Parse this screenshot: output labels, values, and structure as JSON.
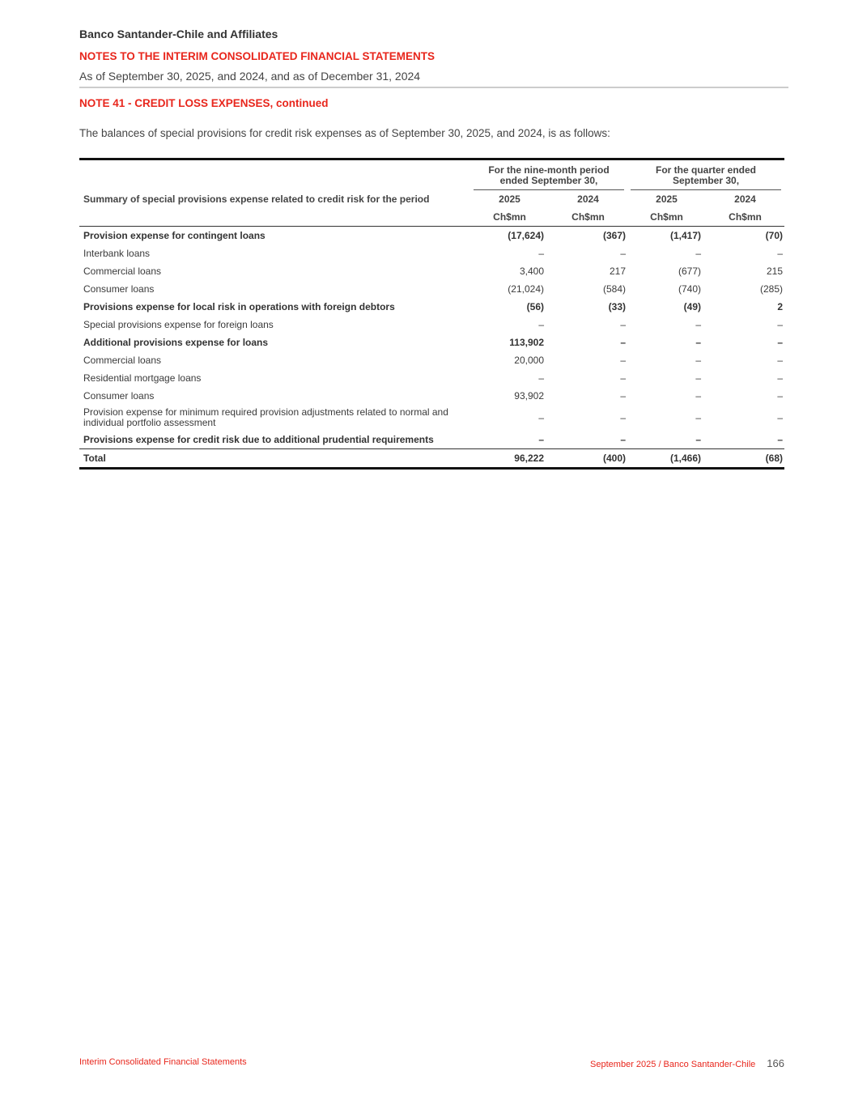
{
  "header": {
    "company": "Banco Santander-Chile and Affiliates",
    "section": "NOTES TO THE INTERIM CONSOLIDATED FINANCIAL STATEMENTS",
    "date": "As of September 30, 2025, and 2024, and as of December 31, 2024"
  },
  "note_title": "NOTE 41 - CREDIT LOSS EXPENSES, continued",
  "intro": "The balances of special provisions for credit risk expenses as of September 30, 2025, and 2024, is as follows:",
  "table": {
    "group1": "For the nine-month period ended September 30,",
    "group2": "For the quarter ended September 30,",
    "row_header": "Summary of special provisions expense related to credit risk for the period",
    "years": [
      "2025",
      "2024",
      "2025",
      "2024"
    ],
    "units": [
      "Ch$mn",
      "Ch$mn",
      "Ch$mn",
      "Ch$mn"
    ],
    "rows": [
      {
        "label": "Provision expense for contingent loans",
        "values": [
          "(17,624)",
          "(367)",
          "(1,417)",
          "(70)"
        ]
      },
      {
        "label": "Interbank loans",
        "values": [
          "–",
          "–",
          "–",
          "–"
        ]
      },
      {
        "label": "Commercial loans",
        "values": [
          "3,400",
          "217",
          "(677)",
          "215"
        ]
      },
      {
        "label": "Consumer loans",
        "values": [
          "(21,024)",
          "(584)",
          "(740)",
          "(285)"
        ]
      },
      {
        "label": "Provisions expense for local risk in operations with foreign debtors",
        "values": [
          "(56)",
          "(33)",
          "(49)",
          "2"
        ]
      },
      {
        "label": "Special provisions expense for foreign loans",
        "values": [
          "–",
          "–",
          "–",
          "–"
        ]
      },
      {
        "label": "Additional provisions expense for loans",
        "values": [
          "113,902",
          "–",
          "–",
          "–"
        ]
      },
      {
        "label": "Commercial loans",
        "values": [
          "20,000",
          "–",
          "–",
          "–"
        ]
      },
      {
        "label": "Residential mortgage loans",
        "values": [
          "–",
          "–",
          "–",
          "–"
        ]
      },
      {
        "label": "Consumer loans",
        "values": [
          "93,902",
          "–",
          "–",
          "–"
        ]
      },
      {
        "label": "Provision expense for minimum required provision adjustments related to normal and individual portfolio assessment",
        "values": [
          "–",
          "–",
          "–",
          "–"
        ]
      },
      {
        "label": "Provisions expense for credit risk due to additional prudential requirements",
        "values": [
          "–",
          "–",
          "–",
          "–"
        ]
      }
    ],
    "total": {
      "label": "Total",
      "values": [
        "96,222",
        "(400)",
        "(1,466)",
        "(68)"
      ]
    }
  },
  "footer": {
    "left": "Interim Consolidated Financial Statements",
    "right": "September 2025 / Banco Santander-Chile",
    "page": "166"
  }
}
